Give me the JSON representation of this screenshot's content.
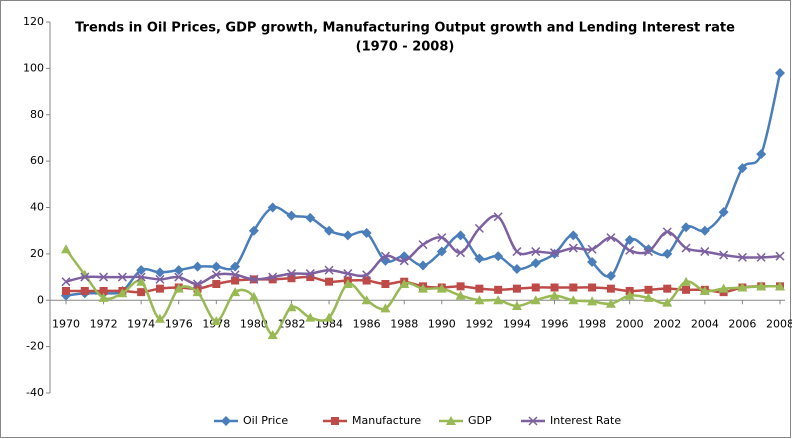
{
  "chart_data": {
    "type": "line",
    "title": "Trends in Oil Prices, GDP growth, Manufacturing Output growth and Lending Interest rate",
    "subtitle": "(1970 - 2008)",
    "x": [
      1970,
      1971,
      1972,
      1973,
      1974,
      1975,
      1976,
      1977,
      1978,
      1979,
      1980,
      1981,
      1982,
      1983,
      1984,
      1985,
      1986,
      1987,
      1988,
      1989,
      1990,
      1991,
      1992,
      1993,
      1994,
      1995,
      1996,
      1997,
      1998,
      1999,
      2000,
      2001,
      2002,
      2003,
      2004,
      2005,
      2006,
      2007,
      2008
    ],
    "xlim": [
      1970,
      2008
    ],
    "xticks": [
      1970,
      1972,
      1974,
      1976,
      1978,
      1980,
      1982,
      1984,
      1986,
      1988,
      1990,
      1992,
      1994,
      1996,
      1998,
      2000,
      2002,
      2004,
      2006,
      2008
    ],
    "ylim": [
      -40,
      120
    ],
    "yticks": [
      -40,
      -20,
      0,
      20,
      40,
      60,
      80,
      100,
      120
    ],
    "grid": false,
    "legend": "bottom",
    "series": [
      {
        "name": "Oil Price",
        "color": "#4a7ebb",
        "marker": "diamond",
        "values": [
          2,
          3,
          3,
          4,
          13,
          12,
          13,
          14.5,
          14.5,
          14.5,
          30,
          40,
          36.5,
          35.5,
          30,
          28,
          29,
          17,
          19,
          15,
          21,
          28,
          18,
          19,
          13.5,
          16,
          20,
          28,
          16.5,
          10.5,
          26,
          22,
          20,
          31.5,
          30,
          38,
          57,
          63,
          98
        ]
      },
      {
        "name": "Manufacture",
        "color": "#be4b48",
        "marker": "square",
        "values": [
          4,
          4,
          4,
          4,
          3.5,
          5,
          5.5,
          5,
          7,
          8.5,
          9,
          9,
          9.5,
          10,
          8,
          8.5,
          8.5,
          7,
          8,
          6,
          5.5,
          6,
          5,
          4.5,
          5,
          5.5,
          5.5,
          5.5,
          5.5,
          5,
          4,
          4.5,
          5,
          4.5,
          4.5,
          3.5,
          5.5,
          6,
          6
        ]
      },
      {
        "name": "GDP",
        "color": "#98b954",
        "marker": "triangle",
        "values": [
          22,
          11,
          1,
          3,
          8,
          -8,
          5,
          3.5,
          -9,
          3.5,
          1.5,
          -15,
          -3,
          -7.5,
          -7.5,
          7,
          0,
          -3.5,
          7,
          5,
          5,
          2,
          0,
          0,
          -2.5,
          0,
          2,
          0,
          -0.5,
          -1.5,
          2,
          1,
          -1,
          8,
          4,
          5,
          5.5,
          6,
          6
        ]
      },
      {
        "name": "Interest Rate",
        "color": "#7d60a0",
        "marker": "x",
        "values": [
          8,
          10,
          10,
          10,
          10,
          9,
          10,
          7,
          11,
          11,
          9,
          10,
          11.5,
          11.5,
          13,
          11.5,
          11,
          19,
          17,
          24,
          27,
          20.5,
          31,
          36,
          21,
          21,
          20.5,
          22.5,
          22,
          27,
          21.5,
          21,
          29.5,
          22.5,
          21,
          19.5,
          18.5,
          18.5,
          19
        ]
      }
    ]
  }
}
